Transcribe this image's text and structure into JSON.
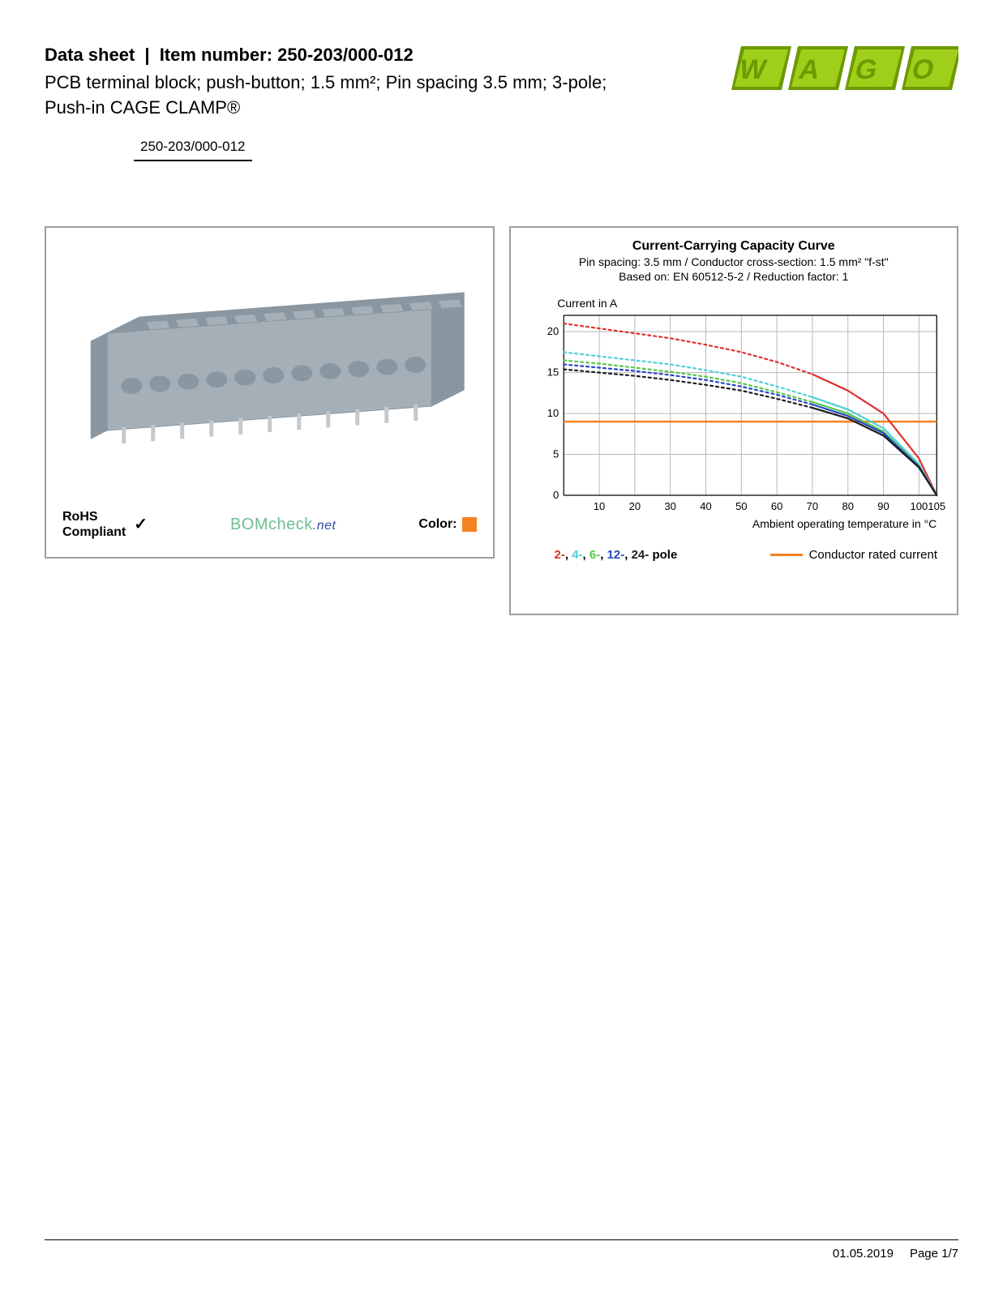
{
  "header": {
    "datasheet_label": "Data sheet",
    "item_label": "Item number: 250-203/000-012",
    "subtitle": "PCB terminal block; push-button; 1.5 mm²; Pin spacing 3.5 mm; 3-pole; Push-in CAGE CLAMP®",
    "logo_colors": {
      "dark": "#6c9a00",
      "light": "#9fcf1a",
      "dot": "#ffffff"
    }
  },
  "part_number_box": "250-203/000-012",
  "product": {
    "body_color": "#a4afb7",
    "body_dark": "#8b97a0",
    "pin_color": "#c4c9cd",
    "rohs_line1": "RoHS",
    "rohs_line2": "Compliant",
    "bomcheck_main": "BOMcheck",
    "bomcheck_suffix": ".net",
    "color_label": "Color:",
    "color_swatch": "#f58220"
  },
  "chart": {
    "title": "Current-Carrying Capacity Curve",
    "sub1": "Pin spacing: 3.5 mm / Conductor cross-section: 1.5 mm² \"f-st\"",
    "sub2": "Based on: EN 60512-5-2 / Reduction factor: 1",
    "y_label": "Current in A",
    "x_label": "Ambient operating temperature in °C",
    "y_ticks": [
      0,
      5,
      10,
      15,
      20
    ],
    "y_max": 22,
    "x_ticks": [
      10,
      20,
      30,
      40,
      50,
      60,
      70,
      80,
      90,
      100,
      105
    ],
    "x_min": 0,
    "x_max": 105,
    "grid_color": "#b8b8b8",
    "background": "#ffffff",
    "rated_current_color": "#f58220",
    "rated_current_value": 9,
    "series": [
      {
        "name": "2-pole",
        "color": "#e03030",
        "dash": "3,4",
        "solid_from_x": 70,
        "points": [
          [
            0,
            21
          ],
          [
            10,
            20.4
          ],
          [
            20,
            19.8
          ],
          [
            30,
            19.2
          ],
          [
            40,
            18.4
          ],
          [
            50,
            17.5
          ],
          [
            60,
            16.3
          ],
          [
            70,
            14.8
          ],
          [
            80,
            12.8
          ],
          [
            90,
            10
          ],
          [
            100,
            4.5
          ],
          [
            105,
            0
          ]
        ]
      },
      {
        "name": "4-pole",
        "color": "#4fd0d8",
        "dash": "3,4",
        "solid_from_x": 70,
        "points": [
          [
            0,
            17.5
          ],
          [
            10,
            17
          ],
          [
            20,
            16.5
          ],
          [
            30,
            16
          ],
          [
            40,
            15.3
          ],
          [
            50,
            14.5
          ],
          [
            60,
            13.3
          ],
          [
            70,
            12
          ],
          [
            80,
            10.5
          ],
          [
            90,
            8.2
          ],
          [
            100,
            3.8
          ],
          [
            105,
            0
          ]
        ]
      },
      {
        "name": "6-pole",
        "color": "#55c94a",
        "dash": "3,4",
        "solid_from_x": 70,
        "points": [
          [
            0,
            16.5
          ],
          [
            10,
            16.1
          ],
          [
            20,
            15.6
          ],
          [
            30,
            15.1
          ],
          [
            40,
            14.5
          ],
          [
            50,
            13.7
          ],
          [
            60,
            12.6
          ],
          [
            70,
            11.4
          ],
          [
            80,
            10
          ],
          [
            90,
            7.8
          ],
          [
            100,
            3.6
          ],
          [
            105,
            0
          ]
        ]
      },
      {
        "name": "12-pole",
        "color": "#2646c8",
        "dash": "3,4",
        "solid_from_x": 70,
        "points": [
          [
            0,
            16
          ],
          [
            10,
            15.6
          ],
          [
            20,
            15.2
          ],
          [
            30,
            14.7
          ],
          [
            40,
            14.1
          ],
          [
            50,
            13.3
          ],
          [
            60,
            12.3
          ],
          [
            70,
            11.1
          ],
          [
            80,
            9.7
          ],
          [
            90,
            7.6
          ],
          [
            100,
            3.5
          ],
          [
            105,
            0
          ]
        ]
      },
      {
        "name": "24-pole",
        "color": "#1e1e1e",
        "dash": "3,4",
        "solid_from_x": 70,
        "points": [
          [
            0,
            15.4
          ],
          [
            10,
            15
          ],
          [
            20,
            14.6
          ],
          [
            30,
            14.1
          ],
          [
            40,
            13.5
          ],
          [
            50,
            12.8
          ],
          [
            60,
            11.8
          ],
          [
            70,
            10.7
          ],
          [
            80,
            9.4
          ],
          [
            90,
            7.3
          ],
          [
            100,
            3.4
          ],
          [
            105,
            0
          ]
        ]
      }
    ],
    "legend_poles": [
      {
        "label": "2-",
        "color": "#e03030"
      },
      {
        "label": "4-",
        "color": "#4fd0d8"
      },
      {
        "label": "6-",
        "color": "#55c94a"
      },
      {
        "label": "12-",
        "color": "#2646c8"
      },
      {
        "label": "24-",
        "color": "#1e1e1e"
      }
    ],
    "legend_pole_suffix": " pole",
    "legend_rated_label": "Conductor rated current"
  },
  "footer": {
    "date": "01.05.2019",
    "page": "Page 1/7"
  }
}
